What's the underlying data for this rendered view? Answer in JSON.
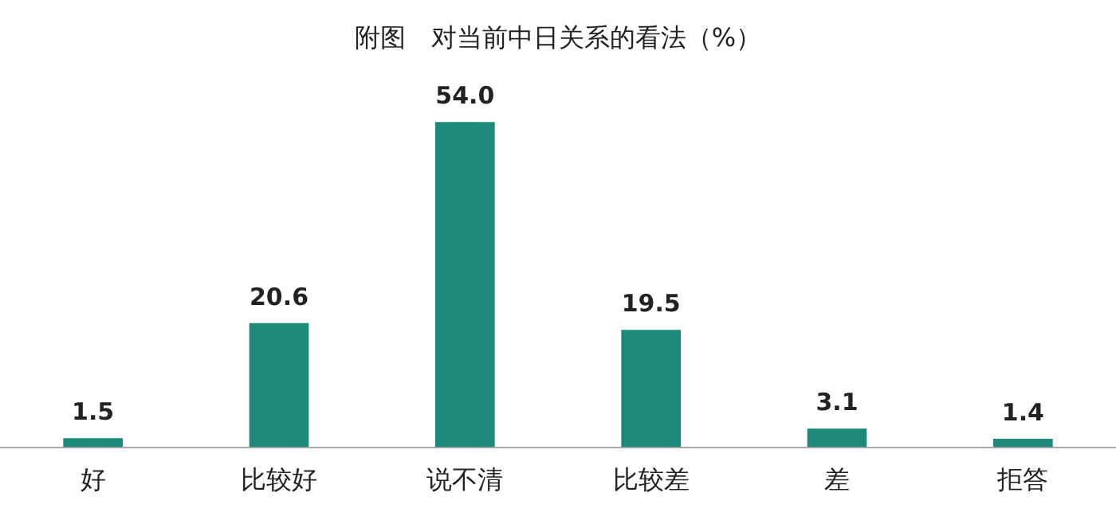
{
  "chart_data": {
    "type": "bar",
    "title": "附图　对当前中日关系的看法（%）",
    "categories": [
      "好",
      "比较好",
      "说不清",
      "比较差",
      "差",
      "拒答"
    ],
    "values": [
      1.5,
      20.6,
      54.0,
      19.5,
      3.1,
      1.4
    ],
    "value_labels": [
      "1.5",
      "20.6",
      "54.0",
      "19.5",
      "3.1",
      "1.4"
    ],
    "color": "#1e8a7c",
    "grid": false,
    "legend": false
  }
}
